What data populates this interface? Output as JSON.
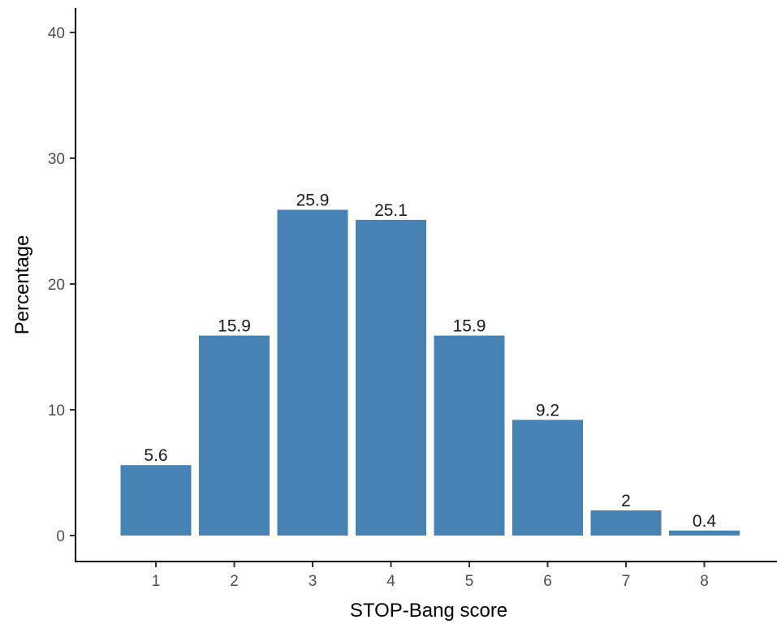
{
  "chart_data": {
    "type": "bar",
    "categories": [
      "1",
      "2",
      "3",
      "4",
      "5",
      "6",
      "7",
      "8"
    ],
    "values": [
      5.6,
      15.9,
      25.9,
      25.1,
      15.9,
      9.2,
      2,
      0.4
    ],
    "value_labels": [
      "5.6",
      "15.9",
      "25.9",
      "25.1",
      "15.9",
      "9.2",
      "2",
      "0.4"
    ],
    "title": "",
    "xlabel": "STOP-Bang score",
    "ylabel": "Percentage",
    "ylim": [
      0,
      42
    ],
    "yticks": [
      0,
      10,
      20,
      30,
      40
    ],
    "ytick_labels": [
      "0",
      "10",
      "20",
      "30",
      "40"
    ],
    "grid": false,
    "legend": "none",
    "bar_color": "#4682b4"
  }
}
